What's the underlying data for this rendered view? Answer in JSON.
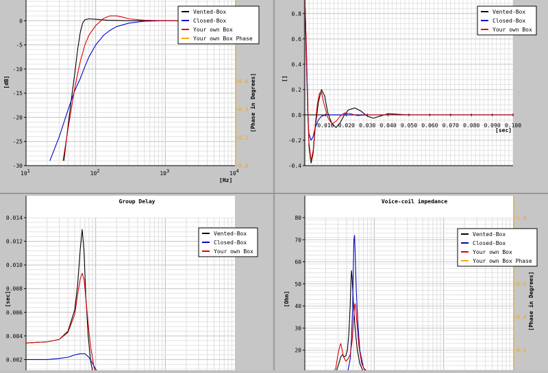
{
  "chart_data": [
    {
      "type": "line",
      "title": "",
      "xlabel": "[Hz]",
      "ylabel": "[dB]",
      "y2label": "[Phase in Degrees]",
      "xscale": "log",
      "xlim": [
        10,
        10000
      ],
      "ylim": [
        -30,
        5
      ],
      "y2lim": [
        0,
        1.2
      ],
      "xticks": [
        10,
        100,
        1000,
        10000
      ],
      "xtick_labels": [
        "10^1",
        "10^2",
        "10^3",
        "10^4"
      ],
      "yticks": [
        -30,
        -25,
        -20,
        -15,
        -10,
        -5,
        0
      ],
      "ytick_labels": [
        "-30",
        "-25",
        "-20",
        "-15",
        "-10",
        "-5",
        "0"
      ],
      "y2ticks": [
        0,
        0.2,
        0.4,
        0.6
      ],
      "y2tick_labels": [
        "0.0",
        "0.2",
        "0.4",
        "0.6"
      ],
      "grid": true,
      "legend_position": "top-right",
      "legend": [
        {
          "name": "Vented-Box",
          "color": "#000000"
        },
        {
          "name": "Closed-Box",
          "color": "#0000cc"
        },
        {
          "name": "Your own Box",
          "color": "#dd0000"
        },
        {
          "name": "Your own Box Phase",
          "color": "#ffa500"
        }
      ],
      "series": [
        {
          "name": "Vented-Box",
          "color": "#000000",
          "points": [
            [
              35,
              -29
            ],
            [
              40,
              -22
            ],
            [
              45,
              -16
            ],
            [
              50,
              -11
            ],
            [
              55,
              -6
            ],
            [
              60,
              -2.5
            ],
            [
              65,
              -0.5
            ],
            [
              70,
              0.2
            ],
            [
              80,
              0.4
            ],
            [
              100,
              0.3
            ],
            [
              150,
              0.1
            ],
            [
              300,
              0
            ],
            [
              1000,
              0
            ],
            [
              2000,
              0
            ]
          ]
        },
        {
          "name": "Closed-Box",
          "color": "#0000cc",
          "points": [
            [
              22,
              -29
            ],
            [
              30,
              -24
            ],
            [
              40,
              -18.5
            ],
            [
              50,
              -14.5
            ],
            [
              60,
              -12
            ],
            [
              70,
              -9.5
            ],
            [
              80,
              -7.5
            ],
            [
              100,
              -5
            ],
            [
              130,
              -3
            ],
            [
              160,
              -2
            ],
            [
              200,
              -1.2
            ],
            [
              300,
              -0.5
            ],
            [
              500,
              -0.1
            ],
            [
              1000,
              0
            ],
            [
              2000,
              0
            ]
          ]
        },
        {
          "name": "Your own Box",
          "color": "#dd0000",
          "points": [
            [
              34,
              -29
            ],
            [
              40,
              -22.5
            ],
            [
              45,
              -18
            ],
            [
              50,
              -14
            ],
            [
              55,
              -11
            ],
            [
              60,
              -8.5
            ],
            [
              70,
              -5
            ],
            [
              80,
              -3
            ],
            [
              100,
              -1
            ],
            [
              130,
              0.5
            ],
            [
              160,
              1
            ],
            [
              200,
              1
            ],
            [
              250,
              0.7
            ],
            [
              300,
              0.4
            ],
            [
              500,
              0.1
            ],
            [
              1000,
              0
            ],
            [
              2000,
              0
            ]
          ]
        }
      ]
    },
    {
      "type": "line",
      "title": "",
      "xlabel": "[sec]",
      "ylabel": "[]",
      "xlim": [
        0,
        0.1
      ],
      "ylim": [
        -0.4,
        0.95
      ],
      "xticks": [
        0.01,
        0.02,
        0.03,
        0.04,
        0.05,
        0.06,
        0.07,
        0.08,
        0.09,
        0.1
      ],
      "xtick_labels": [
        "0.010",
        "0.020",
        "0.030",
        "0.040",
        "0.050",
        "0.060",
        "0.070",
        "0.080",
        "0.090",
        "0.100"
      ],
      "yticks": [
        -0.4,
        -0.2,
        0,
        0.2,
        0.4,
        0.6,
        0.8
      ],
      "ytick_labels": [
        "-0.4",
        "-0.2",
        "0.0",
        "0.2",
        "0.4",
        "0.6",
        "0.8"
      ],
      "grid": true,
      "legend_position": "top-right",
      "legend": [
        {
          "name": "Vented-Box",
          "color": "#000000"
        },
        {
          "name": "Closed-Box",
          "color": "#0000cc"
        },
        {
          "name": "Your own Box",
          "color": "#dd0000"
        }
      ],
      "series": [
        {
          "name": "Vented-Box",
          "color": "#000000",
          "points": [
            [
              0,
              0.95
            ],
            [
              0.0008,
              0.5
            ],
            [
              0.0015,
              0
            ],
            [
              0.002,
              -0.25
            ],
            [
              0.003,
              -0.38
            ],
            [
              0.004,
              -0.3
            ],
            [
              0.005,
              -0.1
            ],
            [
              0.0065,
              0.1
            ],
            [
              0.008,
              0.2
            ],
            [
              0.0095,
              0.15
            ],
            [
              0.011,
              0.02
            ],
            [
              0.013,
              -0.07
            ],
            [
              0.015,
              -0.1
            ],
            [
              0.017,
              -0.06
            ],
            [
              0.019,
              0
            ],
            [
              0.021,
              0.04
            ],
            [
              0.024,
              0.055
            ],
            [
              0.027,
              0.03
            ],
            [
              0.03,
              -0.01
            ],
            [
              0.033,
              -0.025
            ],
            [
              0.036,
              -0.01
            ],
            [
              0.04,
              0.01
            ],
            [
              0.045,
              0.005
            ],
            [
              0.05,
              0
            ],
            [
              0.1,
              0
            ]
          ]
        },
        {
          "name": "Closed-Box",
          "color": "#0000cc",
          "points": [
            [
              0,
              0.95
            ],
            [
              0.0008,
              0.4
            ],
            [
              0.0015,
              -0.05
            ],
            [
              0.002,
              -0.15
            ],
            [
              0.003,
              -0.2
            ],
            [
              0.004,
              -0.17
            ],
            [
              0.005,
              -0.1
            ],
            [
              0.0065,
              -0.04
            ],
            [
              0.008,
              -0.01
            ],
            [
              0.01,
              0
            ],
            [
              0.1,
              0
            ]
          ]
        },
        {
          "name": "Your own Box",
          "color": "#dd0000",
          "points": [
            [
              0,
              0.95
            ],
            [
              0.0008,
              0.5
            ],
            [
              0.0015,
              0
            ],
            [
              0.002,
              -0.22
            ],
            [
              0.003,
              -0.36
            ],
            [
              0.004,
              -0.28
            ],
            [
              0.005,
              -0.08
            ],
            [
              0.006,
              0.08
            ],
            [
              0.007,
              0.17
            ],
            [
              0.008,
              0.18
            ],
            [
              0.009,
              0.1
            ],
            [
              0.011,
              -0.02
            ],
            [
              0.013,
              -0.07
            ],
            [
              0.015,
              -0.05
            ],
            [
              0.017,
              -0.01
            ],
            [
              0.019,
              0.015
            ],
            [
              0.022,
              0.01
            ],
            [
              0.025,
              -0.005
            ],
            [
              0.03,
              0
            ],
            [
              0.1,
              0
            ]
          ]
        }
      ]
    },
    {
      "type": "line",
      "title": "Group Delay",
      "xlabel": "",
      "ylabel": "[sec]",
      "xscale": "log",
      "xlim": [
        10,
        10000
      ],
      "ylim": [
        0,
        0.014
      ],
      "yticks": [
        0.002,
        0.004,
        0.006,
        0.008,
        0.01,
        0.012,
        0.014
      ],
      "ytick_labels": [
        "0.002",
        "0.004",
        "0.006",
        "0.008",
        "0.010",
        "0.012",
        "0.014"
      ],
      "grid": true,
      "legend_position": "top-right",
      "legend": [
        {
          "name": "Vented-Box",
          "color": "#000000"
        },
        {
          "name": "Closed-Box",
          "color": "#0000cc"
        },
        {
          "name": "Your own Box",
          "color": "#dd0000"
        }
      ],
      "series": [
        {
          "name": "Vented-Box",
          "color": "#000000",
          "points": [
            [
              10,
              0.0034
            ],
            [
              20,
              0.0035
            ],
            [
              30,
              0.0037
            ],
            [
              40,
              0.0044
            ],
            [
              50,
              0.0062
            ],
            [
              55,
              0.0083
            ],
            [
              60,
              0.0113
            ],
            [
              64,
              0.013
            ],
            [
              68,
              0.0112
            ],
            [
              72,
              0.0075
            ],
            [
              78,
              0.004
            ],
            [
              85,
              0.0018
            ],
            [
              95,
              0.0004
            ],
            [
              100,
              0
            ]
          ]
        },
        {
          "name": "Closed-Box",
          "color": "#0000cc",
          "points": [
            [
              10,
              0.002
            ],
            [
              20,
              0.002
            ],
            [
              30,
              0.0021
            ],
            [
              40,
              0.0022
            ],
            [
              50,
              0.0024
            ],
            [
              60,
              0.0025
            ],
            [
              70,
              0.0025
            ],
            [
              80,
              0.0022
            ],
            [
              90,
              0.0017
            ],
            [
              100,
              0.0012
            ],
            [
              110,
              0.0008
            ]
          ]
        },
        {
          "name": "Your own Box",
          "color": "#dd0000",
          "points": [
            [
              10,
              0.0034
            ],
            [
              20,
              0.0035
            ],
            [
              30,
              0.0037
            ],
            [
              40,
              0.0043
            ],
            [
              50,
              0.0058
            ],
            [
              55,
              0.0075
            ],
            [
              60,
              0.0088
            ],
            [
              64,
              0.0093
            ],
            [
              68,
              0.0088
            ],
            [
              72,
              0.0073
            ],
            [
              78,
              0.005
            ],
            [
              85,
              0.003
            ],
            [
              95,
              0.0013
            ],
            [
              110,
              0.0003
            ],
            [
              120,
              0
            ]
          ]
        }
      ]
    },
    {
      "type": "line",
      "title": "Voice-coil impedance",
      "xlabel": "",
      "ylabel": "[Ohm]",
      "y2label": "[Phase in Degrees]",
      "xscale": "log",
      "xlim": [
        10,
        10000
      ],
      "ylim": [
        5,
        80
      ],
      "y2lim": [
        0,
        1.0
      ],
      "yticks": [
        10,
        20,
        30,
        40,
        50,
        60,
        70,
        80
      ],
      "ytick_labels": [
        "10",
        "20",
        "30",
        "40",
        "50",
        "60",
        "70",
        "80"
      ],
      "y2ticks": [
        0.2,
        0.4,
        0.6,
        0.8,
        1.0
      ],
      "y2tick_labels": [
        "0.2",
        "0.4",
        "0.6",
        "0.8",
        "1.0"
      ],
      "grid": true,
      "legend_position": "top-right",
      "legend": [
        {
          "name": "Vented-Box",
          "color": "#000000"
        },
        {
          "name": "Closed-Box",
          "color": "#0000cc"
        },
        {
          "name": "Your own Box",
          "color": "#dd0000"
        },
        {
          "name": "Your own Box Phase",
          "color": "#ffa500"
        }
      ],
      "series": [
        {
          "name": "Vented-Box",
          "color": "#000000",
          "points": [
            [
              20,
              6.5
            ],
            [
              25,
              8
            ],
            [
              28,
              10
            ],
            [
              31,
              14
            ],
            [
              33,
              17
            ],
            [
              35,
              18
            ],
            [
              37,
              17
            ],
            [
              39,
              17.5
            ],
            [
              41,
              20
            ],
            [
              43,
              27
            ],
            [
              45,
              40
            ],
            [
              46,
              50
            ],
            [
              47,
              56
            ],
            [
              48,
              53
            ],
            [
              50,
              42
            ],
            [
              53,
              30
            ],
            [
              57,
              20
            ],
            [
              62,
              14
            ],
            [
              70,
              10
            ],
            [
              90,
              8
            ],
            [
              130,
              7.5
            ],
            [
              200,
              7.5
            ]
          ]
        },
        {
          "name": "Closed-Box",
          "color": "#0000cc",
          "points": [
            [
              20,
              6.5
            ],
            [
              30,
              7.2
            ],
            [
              38,
              8.5
            ],
            [
              42,
              11
            ],
            [
              45,
              16
            ],
            [
              47,
              25
            ],
            [
              49,
              40
            ],
            [
              50,
              58
            ],
            [
              51,
              70
            ],
            [
              52,
              72
            ],
            [
              53,
              65
            ],
            [
              55,
              48
            ],
            [
              58,
              32
            ],
            [
              62,
              20
            ],
            [
              70,
              12
            ],
            [
              90,
              8.5
            ],
            [
              130,
              7.5
            ],
            [
              200,
              7.5
            ]
          ]
        },
        {
          "name": "Your own Box",
          "color": "#dd0000",
          "points": [
            [
              20,
              6.5
            ],
            [
              25,
              8.5
            ],
            [
              28,
              12
            ],
            [
              30,
              18
            ],
            [
              32,
              22
            ],
            [
              33,
              23
            ],
            [
              34,
              21
            ],
            [
              36,
              17
            ],
            [
              39,
              15
            ],
            [
              42,
              16
            ],
            [
              45,
              18
            ],
            [
              48,
              24
            ],
            [
              50,
              32
            ],
            [
              52,
              40
            ],
            [
              53,
              41
            ],
            [
              54,
              40
            ],
            [
              56,
              33
            ],
            [
              60,
              22
            ],
            [
              66,
              14
            ],
            [
              75,
              10
            ],
            [
              100,
              8
            ],
            [
              150,
              7.5
            ],
            [
              200,
              7.5
            ]
          ]
        }
      ]
    }
  ]
}
